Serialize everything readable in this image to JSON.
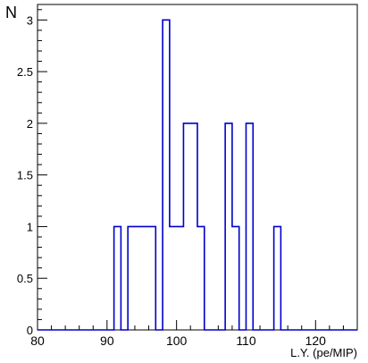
{
  "chart_data": {
    "type": "histogram",
    "title": "",
    "xlabel": "L.Y. (pe/MIP)",
    "ylabel": "N",
    "xlim": [
      80,
      126
    ],
    "ylim": [
      0,
      3.15
    ],
    "bin_width": 1,
    "line_color": "#0000cc",
    "x_ticks": [
      80,
      90,
      100,
      110,
      120
    ],
    "x_tick_labels": [
      "80",
      "90",
      "100",
      "110",
      "120"
    ],
    "y_ticks": [
      0,
      0.5,
      1,
      1.5,
      2,
      2.5,
      3
    ],
    "y_tick_labels": [
      "0",
      "0.5",
      "1",
      "1.5",
      "2",
      "2.5",
      "3"
    ],
    "bins": [
      {
        "x_low": 91,
        "x_high": 92,
        "count": 1
      },
      {
        "x_low": 93,
        "x_high": 94,
        "count": 1
      },
      {
        "x_low": 94,
        "x_high": 95,
        "count": 1
      },
      {
        "x_low": 95,
        "x_high": 96,
        "count": 1
      },
      {
        "x_low": 96,
        "x_high": 97,
        "count": 1
      },
      {
        "x_low": 98,
        "x_high": 99,
        "count": 3
      },
      {
        "x_low": 99,
        "x_high": 100,
        "count": 1
      },
      {
        "x_low": 100,
        "x_high": 101,
        "count": 1
      },
      {
        "x_low": 101,
        "x_high": 102,
        "count": 2
      },
      {
        "x_low": 102,
        "x_high": 103,
        "count": 2
      },
      {
        "x_low": 103,
        "x_high": 104,
        "count": 1
      },
      {
        "x_low": 107,
        "x_high": 108,
        "count": 2
      },
      {
        "x_low": 108,
        "x_high": 109,
        "count": 1
      },
      {
        "x_low": 110,
        "x_high": 111,
        "count": 2
      },
      {
        "x_low": 114,
        "x_high": 115,
        "count": 1
      }
    ]
  }
}
